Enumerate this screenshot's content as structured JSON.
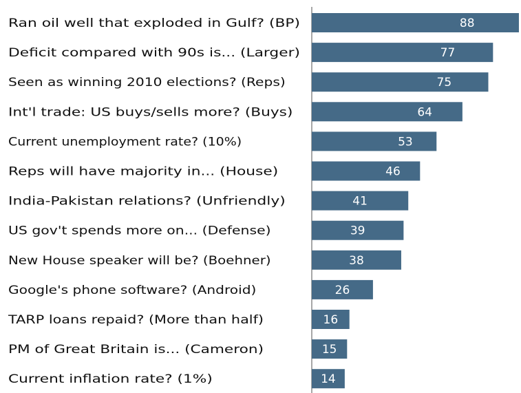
{
  "chart_data": {
    "type": "bar",
    "orientation": "horizontal",
    "categories": [
      "Ran oil well that exploded in Gulf? (BP)",
      "Deficit compared with 90s is... (Larger)",
      "Seen as winning 2010 elections? (Reps)",
      "Int'l trade: US buys/sells more? (Buys)",
      "Current unemployment rate? (10%)",
      "Reps will have majority in... (House)",
      "India-Pakistan relations? (Unfriendly)",
      "US gov't spends more on... (Defense)",
      "New House speaker will be? (Boehner)",
      "Google's phone software? (Android)",
      "TARP loans repaid? (More than half)",
      "PM of Great Britain is... (Cameron)",
      "Current inflation rate? (1%)"
    ],
    "values": [
      88,
      77,
      75,
      64,
      53,
      46,
      41,
      39,
      38,
      26,
      16,
      15,
      14
    ],
    "data_labels": [
      "88",
      "77",
      "75",
      "64",
      "53",
      "46",
      "41",
      "39",
      "38",
      "26",
      "16",
      "15",
      "14"
    ],
    "bar_color": "#456a87",
    "axis_color": "#888888",
    "xlim": [
      0,
      100
    ],
    "grid": false,
    "legend": "none"
  }
}
